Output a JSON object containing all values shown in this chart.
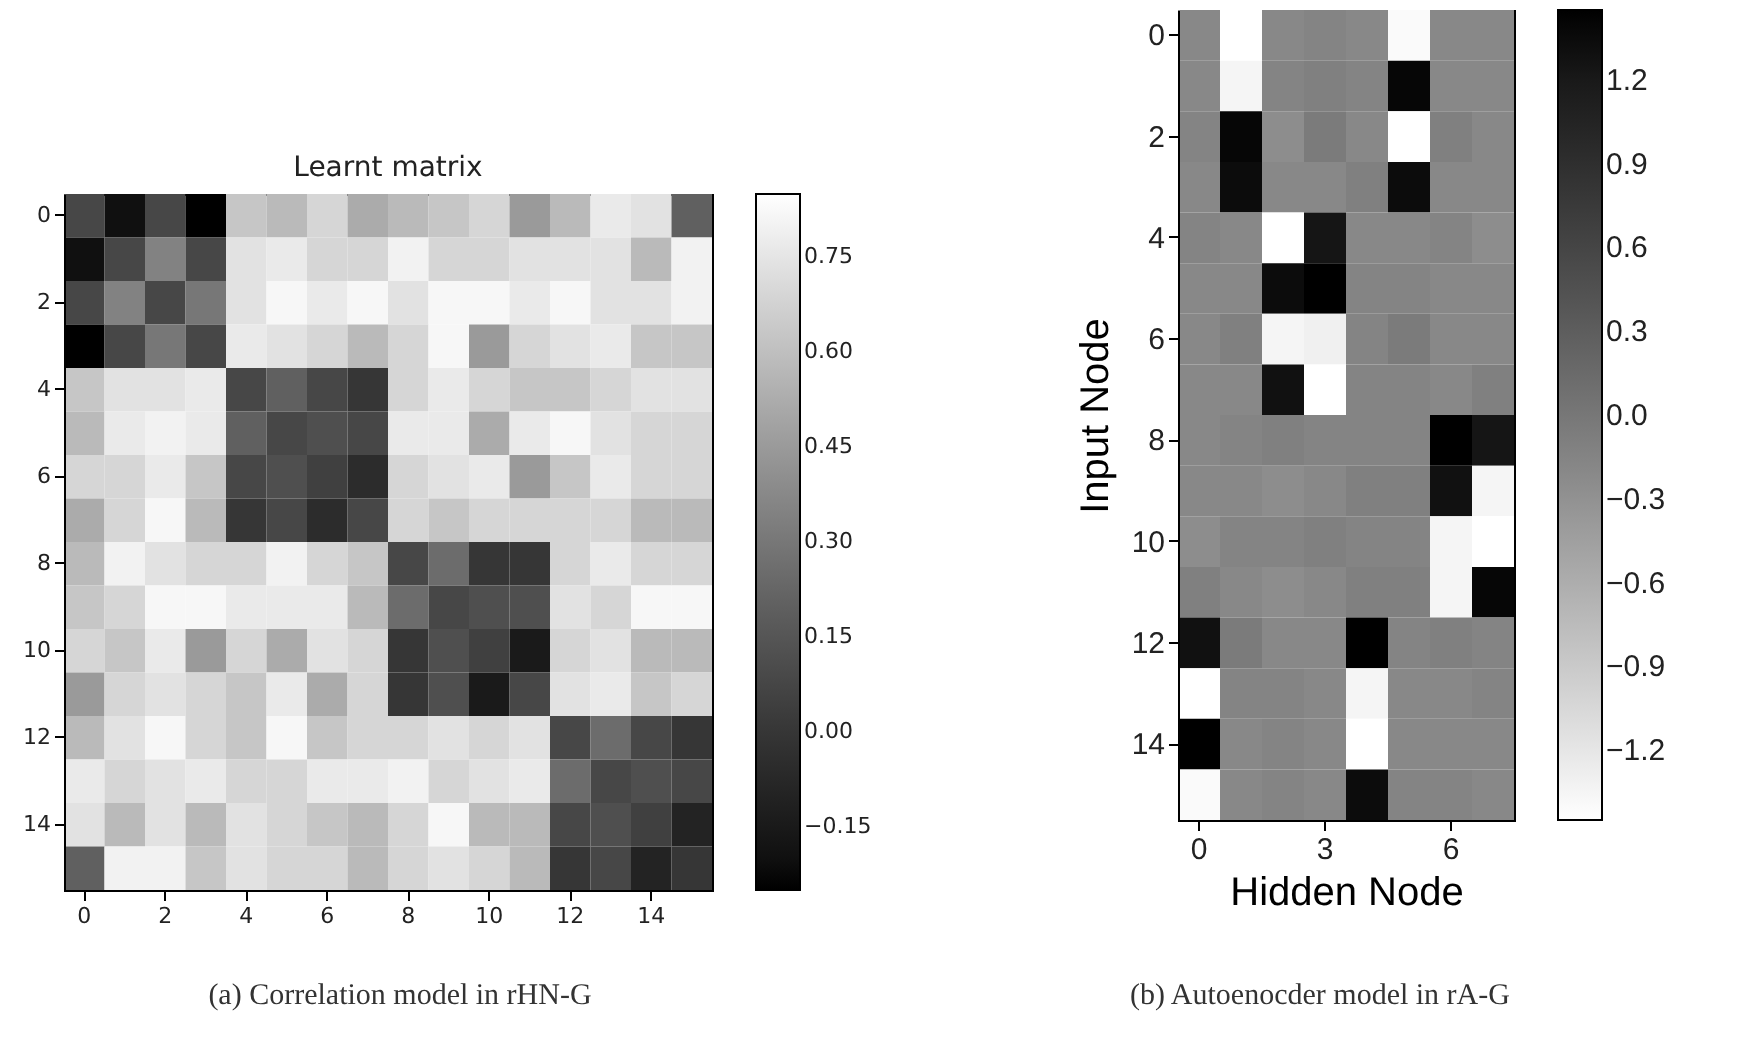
{
  "chart_data": [
    {
      "type": "heatmap",
      "title": "Learnt matrix",
      "annotations": [
        "(a) Correlation model in rHN-G"
      ],
      "categories": [
        "0",
        null,
        "2",
        null,
        "4",
        null,
        "6",
        null,
        "8",
        null,
        "10",
        null,
        "12",
        null,
        "14",
        null
      ],
      "y_categories": [
        "0",
        null,
        "2",
        null,
        "4",
        null,
        "6",
        null,
        "8",
        null,
        "10",
        null,
        "12",
        null,
        "14",
        null
      ],
      "colors": [
        "#000000",
        "#ffffff"
      ],
      "clim": [
        -0.25,
        0.85
      ],
      "cticks": [
        {
          "value": -0.15,
          "label": "−0.15"
        },
        {
          "value": 0,
          "label": "0.00"
        },
        {
          "value": 0.15,
          "label": "0.15"
        },
        {
          "value": 0.3,
          "label": "0.30"
        },
        {
          "value": 0.45,
          "label": "0.45"
        },
        {
          "value": 0.6,
          "label": "0.60"
        },
        {
          "value": 0.75,
          "label": "0.75"
        }
      ],
      "cells": [
        [
          0.08,
          -0.2,
          0.08,
          -0.25,
          0.63,
          0.58,
          0.69,
          0.52,
          0.58,
          0.63,
          0.69,
          0.45,
          0.58,
          0.77,
          0.74,
          0.2
        ],
        [
          -0.2,
          0.08,
          0.35,
          0.08,
          0.74,
          0.77,
          0.69,
          0.69,
          0.8,
          0.69,
          0.69,
          0.74,
          0.74,
          0.74,
          0.58,
          0.8
        ],
        [
          0.08,
          0.35,
          0.08,
          0.3,
          0.74,
          0.82,
          0.77,
          0.82,
          0.74,
          0.82,
          0.82,
          0.77,
          0.82,
          0.74,
          0.74,
          0.8
        ],
        [
          -0.25,
          0.08,
          0.3,
          0.08,
          0.77,
          0.74,
          0.69,
          0.58,
          0.69,
          0.82,
          0.45,
          0.69,
          0.74,
          0.77,
          0.63,
          0.63
        ],
        [
          0.63,
          0.74,
          0.74,
          0.77,
          0.08,
          0.2,
          0.08,
          0.0,
          0.69,
          0.77,
          0.69,
          0.63,
          0.63,
          0.69,
          0.74,
          0.74
        ],
        [
          0.58,
          0.77,
          0.8,
          0.77,
          0.2,
          0.08,
          0.12,
          0.08,
          0.77,
          0.77,
          0.52,
          0.77,
          0.82,
          0.74,
          0.69,
          0.69
        ],
        [
          0.69,
          0.69,
          0.77,
          0.63,
          0.08,
          0.12,
          0.05,
          -0.05,
          0.69,
          0.74,
          0.77,
          0.45,
          0.63,
          0.77,
          0.69,
          0.69
        ],
        [
          0.52,
          0.69,
          0.82,
          0.58,
          0.0,
          0.08,
          -0.05,
          0.08,
          0.69,
          0.63,
          0.69,
          0.69,
          0.69,
          0.69,
          0.58,
          0.58
        ],
        [
          0.58,
          0.8,
          0.74,
          0.69,
          0.69,
          0.8,
          0.69,
          0.63,
          0.08,
          0.25,
          0.0,
          0.0,
          0.69,
          0.77,
          0.69,
          0.69
        ],
        [
          0.63,
          0.69,
          0.82,
          0.82,
          0.77,
          0.77,
          0.77,
          0.58,
          0.25,
          0.08,
          0.12,
          0.12,
          0.74,
          0.69,
          0.82,
          0.82
        ],
        [
          0.69,
          0.63,
          0.77,
          0.45,
          0.69,
          0.52,
          0.74,
          0.69,
          0.0,
          0.12,
          0.05,
          -0.15,
          0.69,
          0.74,
          0.58,
          0.58
        ],
        [
          0.45,
          0.69,
          0.74,
          0.69,
          0.63,
          0.77,
          0.52,
          0.69,
          0.0,
          0.12,
          -0.15,
          0.08,
          0.74,
          0.77,
          0.63,
          0.69
        ],
        [
          0.58,
          0.74,
          0.82,
          0.69,
          0.63,
          0.82,
          0.63,
          0.69,
          0.69,
          0.74,
          0.69,
          0.74,
          0.08,
          0.25,
          0.08,
          0.0
        ],
        [
          0.77,
          0.69,
          0.74,
          0.77,
          0.69,
          0.69,
          0.77,
          0.77,
          0.8,
          0.69,
          0.74,
          0.77,
          0.25,
          0.08,
          0.12,
          0.08
        ],
        [
          0.74,
          0.58,
          0.74,
          0.58,
          0.74,
          0.69,
          0.63,
          0.58,
          0.69,
          0.82,
          0.58,
          0.58,
          0.08,
          0.12,
          0.05,
          -0.1
        ],
        [
          0.2,
          0.8,
          0.8,
          0.63,
          0.74,
          0.69,
          0.69,
          0.58,
          0.69,
          0.74,
          0.69,
          0.58,
          0.0,
          0.08,
          -0.1,
          0.0
        ]
      ]
    },
    {
      "type": "heatmap",
      "xlabel": "Hidden Node",
      "ylabel": "Input Node",
      "annotations": [
        "(b) Autoenocder model in rA-G"
      ],
      "categories": [
        "0",
        null,
        null,
        "3",
        null,
        null,
        "6",
        null
      ],
      "y_categories": [
        "0",
        null,
        "2",
        null,
        "4",
        null,
        "6",
        null,
        "8",
        null,
        "10",
        null,
        "12",
        null,
        "14",
        null
      ],
      "colors": [
        "#ffffff",
        "#000000"
      ],
      "clim": [
        -1.45,
        1.45
      ],
      "cticks": [
        {
          "value": -1.2,
          "label": "−1.2"
        },
        {
          "value": -0.9,
          "label": "−0.9"
        },
        {
          "value": -0.6,
          "label": "−0.6"
        },
        {
          "value": -0.3,
          "label": "−0.3"
        },
        {
          "value": 0,
          "label": "0.0"
        },
        {
          "value": 0.3,
          "label": "0.3"
        },
        {
          "value": 0.6,
          "label": "0.6"
        },
        {
          "value": 0.9,
          "label": "0.9"
        },
        {
          "value": 1.2,
          "label": "1.2"
        }
      ],
      "cells": [
        [
          -0.2,
          -1.45,
          -0.2,
          -0.15,
          -0.2,
          -1.4,
          -0.2,
          -0.2
        ],
        [
          -0.2,
          -1.35,
          -0.15,
          -0.1,
          -0.15,
          1.4,
          -0.2,
          -0.2
        ],
        [
          -0.15,
          1.4,
          -0.25,
          -0.05,
          -0.2,
          -1.45,
          -0.1,
          -0.2
        ],
        [
          -0.2,
          1.35,
          -0.2,
          -0.2,
          -0.1,
          1.35,
          -0.2,
          -0.2
        ],
        [
          -0.15,
          -0.2,
          -1.45,
          1.25,
          -0.2,
          -0.2,
          -0.15,
          -0.25
        ],
        [
          -0.2,
          -0.2,
          1.35,
          1.45,
          -0.15,
          -0.15,
          -0.2,
          -0.2
        ],
        [
          -0.2,
          -0.1,
          -1.35,
          -1.3,
          -0.15,
          -0.05,
          -0.2,
          -0.2
        ],
        [
          -0.2,
          -0.2,
          1.3,
          -1.45,
          -0.15,
          -0.15,
          -0.2,
          -0.1
        ],
        [
          -0.2,
          -0.15,
          -0.1,
          -0.15,
          -0.15,
          -0.15,
          1.45,
          1.25
        ],
        [
          -0.2,
          -0.2,
          -0.25,
          -0.2,
          -0.1,
          -0.1,
          1.3,
          -1.35
        ],
        [
          -0.25,
          -0.15,
          -0.15,
          -0.1,
          -0.15,
          -0.15,
          -1.35,
          -1.45
        ],
        [
          -0.1,
          -0.2,
          -0.25,
          -0.2,
          -0.1,
          -0.1,
          -1.35,
          1.4
        ],
        [
          1.3,
          -0.05,
          -0.2,
          -0.2,
          1.45,
          -0.15,
          -0.1,
          -0.15
        ],
        [
          -1.45,
          -0.15,
          -0.15,
          -0.2,
          -1.35,
          -0.2,
          -0.2,
          -0.15
        ],
        [
          1.45,
          -0.2,
          -0.15,
          -0.2,
          -1.45,
          -0.2,
          -0.2,
          -0.2
        ],
        [
          -1.4,
          -0.2,
          -0.15,
          -0.2,
          1.35,
          -0.15,
          -0.15,
          -0.2
        ]
      ]
    }
  ]
}
